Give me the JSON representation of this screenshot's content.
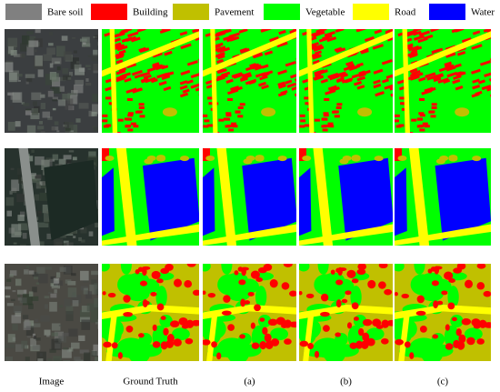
{
  "legend": [
    {
      "label": "Bare soil",
      "color": "#808080"
    },
    {
      "label": "Building",
      "color": "#ff0000"
    },
    {
      "label": "Pavement",
      "color": "#c0c000"
    },
    {
      "label": "Vegetable",
      "color": "#00ff00"
    },
    {
      "label": "Road",
      "color": "#ffff00"
    },
    {
      "label": "Water",
      "color": "#0000ff"
    }
  ],
  "columns": [
    "Image",
    "Ground Truth",
    "(a)",
    "(b)",
    "(c)"
  ]
}
